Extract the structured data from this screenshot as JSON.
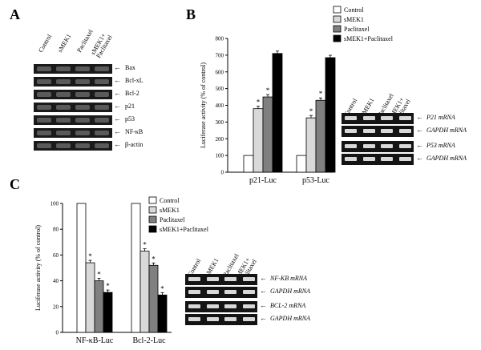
{
  "panels": {
    "a": "A",
    "b": "B",
    "c": "C"
  },
  "lanes": [
    "Control",
    "sMEK1",
    "Paclitaxel",
    "sMEK1+\nPaclitaxel"
  ],
  "panel_a": {
    "proteins": [
      "Bax",
      "Bcl-xL",
      "Bcl-2",
      "p21",
      "p53",
      "NF-κB",
      "β-actin"
    ]
  },
  "panel_b": {
    "mrna_rows": [
      "P21 mRNA",
      "GAPDH mRNA",
      "P53 mRNA",
      "GAPDH mRNA"
    ]
  },
  "panel_c": {
    "mrna_rows": [
      "NF-KB mRNA",
      "GAPDH mRNA",
      "BCL-2 mRNA",
      "GAPDH mRNA"
    ]
  },
  "colors": {
    "control": "#ffffff",
    "smek1": "#d9d9d9",
    "paclitaxel": "#808080",
    "combo": "#000000"
  },
  "chart_data": [
    {
      "type": "bar",
      "ylabel": "Luciferase activity (% of control)",
      "categories": [
        "p21-Luc",
        "p53-Luc"
      ],
      "ylim": [
        0,
        800
      ],
      "yticks": [
        0,
        100,
        200,
        300,
        400,
        500,
        600,
        700,
        800
      ],
      "legend": "top-right",
      "series": [
        {
          "name": "Control",
          "values": [
            100,
            100
          ]
        },
        {
          "name": "sMEK1",
          "values": [
            380,
            325
          ]
        },
        {
          "name": "Paclitaxel",
          "values": [
            450,
            430
          ]
        },
        {
          "name": "sMEK1+Paclitaxel",
          "values": [
            710,
            685
          ]
        }
      ],
      "significance": "*"
    },
    {
      "type": "bar",
      "ylabel": "Luciferase activity (% of control)",
      "categories": [
        "NF-κB-Luc",
        "Bcl-2-Luc"
      ],
      "ylim": [
        0,
        100
      ],
      "yticks": [
        0,
        20,
        40,
        60,
        80,
        100
      ],
      "legend": "top-right",
      "series": [
        {
          "name": "Control",
          "values": [
            100,
            100
          ]
        },
        {
          "name": "sMEK1",
          "values": [
            54,
            63
          ]
        },
        {
          "name": "Paclitaxel",
          "values": [
            40,
            52
          ]
        },
        {
          "name": "sMEK1+Paclitaxel",
          "values": [
            31,
            29
          ]
        }
      ],
      "significance": "*"
    }
  ]
}
